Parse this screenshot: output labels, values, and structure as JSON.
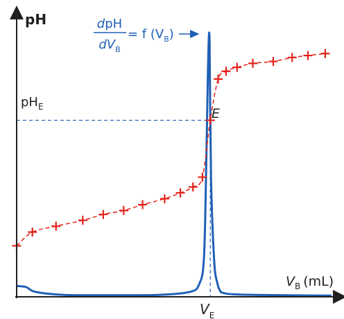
{
  "axes": {
    "y_label": "pH",
    "x_label_main": "V",
    "x_label_sub": "B",
    "x_label_unit": "(mL)",
    "equivalence_x_main": "V",
    "equivalence_x_sub": "E",
    "equivalence_y_main": "pH",
    "equivalence_y_sub": "E",
    "equivalence_point_label": "E"
  },
  "derivative_annotation": {
    "numerator": "dpH",
    "denominator_main": "dV",
    "denominator_sub": "B",
    "rhs_main": "= f (V",
    "rhs_sub": "B",
    "rhs_close": ")"
  },
  "colors": {
    "axis": "#231f20",
    "titration_curve": "#e2231a",
    "derivative_curve": "#1f5fb5",
    "text": "#231f20"
  },
  "chart_data": {
    "type": "line",
    "xlim": [
      0,
      20
    ],
    "ylim": [
      0,
      14
    ],
    "equivalence": {
      "x": 12.3,
      "y": 9
    },
    "series": [
      {
        "style": "dashed-with-plus-markers",
        "x": [
          0,
          1.0,
          2.5,
          4.2,
          5.5,
          6.8,
          8.0,
          9.4,
          10.4,
          11.2,
          11.8,
          12.3,
          12.8,
          13.3,
          14.0,
          15.0,
          16.3,
          17.5,
          18.5,
          19.6
        ],
        "y": [
          2.6,
          3.3,
          3.6,
          3.9,
          4.2,
          4.4,
          4.7,
          5.0,
          5.3,
          5.6,
          6.1,
          9.0,
          11.1,
          11.5,
          11.7,
          11.9,
          12.0,
          12.2,
          12.3,
          12.4
        ]
      },
      {
        "style": "solid",
        "x": [
          0,
          0.6,
          1.2,
          3,
          6,
          9,
          11.0,
          11.6,
          11.9,
          12.05,
          12.15,
          12.25,
          12.35,
          12.55,
          12.75,
          12.9,
          13.1,
          14,
          17,
          20
        ],
        "y": [
          0.55,
          0.5,
          0.25,
          0.1,
          0.08,
          0.1,
          0.25,
          0.65,
          2.0,
          7.0,
          11.5,
          13.2,
          6.0,
          1.8,
          0.7,
          0.35,
          0.2,
          0.12,
          0.08,
          0.06
        ]
      }
    ]
  }
}
